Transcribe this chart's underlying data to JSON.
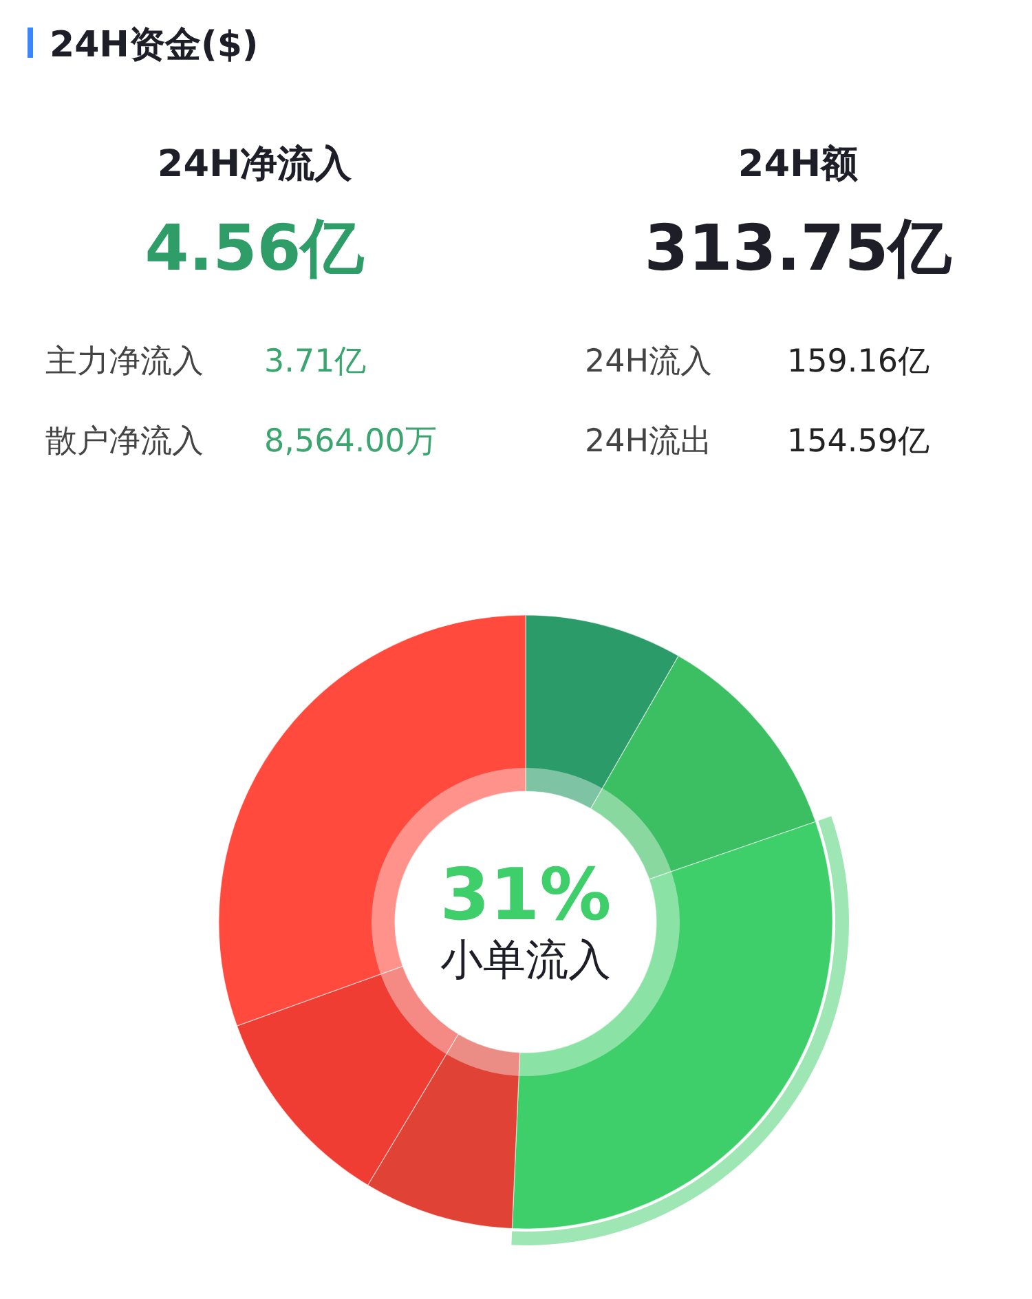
{
  "chart_data": [
    {
      "type": "other",
      "title": "24H资金($)",
      "annotations": [
        "24H净流入",
        "4.56亿",
        "24H额",
        "313.75亿",
        "主力净流入",
        "3.71亿",
        "散户净流入",
        "8,564.00万",
        "24H流入",
        "159.16亿",
        "24H流出",
        "154.59亿"
      ]
    },
    {
      "type": "donut",
      "categories": [
        null,
        null,
        "小单流入",
        null,
        null,
        null
      ],
      "values": [
        8.3,
        11.4,
        31,
        7.9,
        10.9,
        30.5
      ],
      "value_labels": [
        null,
        null,
        "31%",
        null,
        null,
        null
      ],
      "colors": [
        "#2a9b69",
        "#3bbf62",
        "#3ecf6a",
        "#e04235",
        "#ef3d33",
        "#ff4a3d"
      ]
    }
  ]
}
